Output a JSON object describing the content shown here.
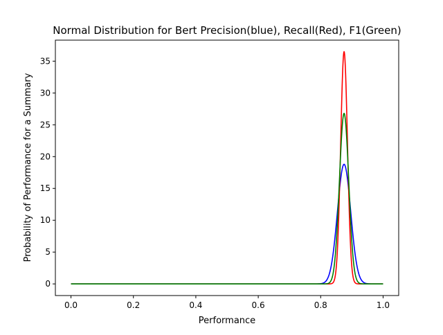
{
  "chart_data": {
    "type": "line",
    "title": "Normal Distribution for Bert Precision(blue), Recall(Red), F1(Green)",
    "xlabel": "Performance",
    "ylabel": "Probability of Performance for a Summary",
    "xlim": [
      -0.05,
      1.05
    ],
    "ylim": [
      -1.83,
      38.3
    ],
    "xticks": [
      "0.0",
      "0.2",
      "0.4",
      "0.6",
      "0.8",
      "1.0"
    ],
    "xtick_values": [
      0.0,
      0.2,
      0.4,
      0.6,
      0.8,
      1.0
    ],
    "yticks": [
      "0",
      "5",
      "10",
      "15",
      "20",
      "25",
      "30",
      "35"
    ],
    "ytick_values": [
      0,
      5,
      10,
      15,
      20,
      25,
      30,
      35
    ],
    "grid": false,
    "legend": "none",
    "x_range": [
      0.0,
      1.0
    ],
    "series": [
      {
        "color": "#0000ff",
        "distribution": "normal",
        "mean": 0.875,
        "std": 0.0212,
        "peak": 18.8
      },
      {
        "color": "#ff0000",
        "distribution": "normal",
        "mean": 0.875,
        "std": 0.0109,
        "peak": 36.5
      },
      {
        "color": "#008000",
        "distribution": "normal",
        "mean": 0.875,
        "std": 0.0149,
        "peak": 26.8
      }
    ]
  }
}
